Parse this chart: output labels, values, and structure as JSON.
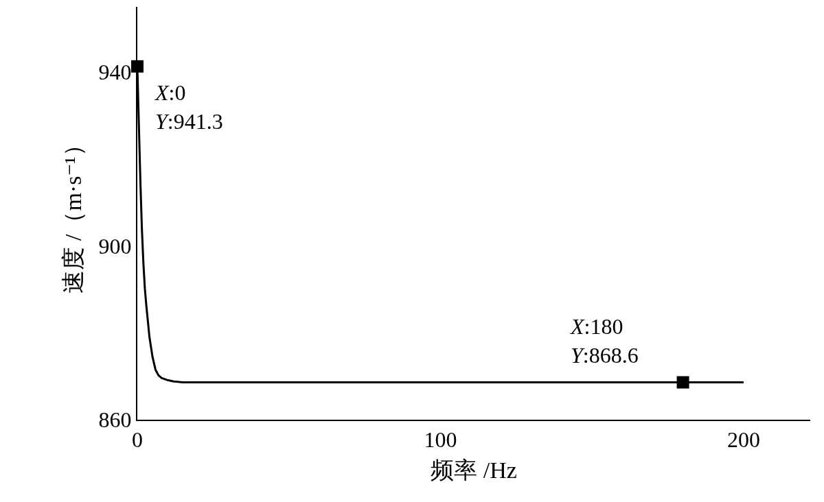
{
  "chart_data": {
    "type": "line",
    "xlabel": "频率 /Hz",
    "ylabel": "速度 /（m·s⁻¹）",
    "xlim": [
      0,
      222
    ],
    "xticks": [
      0,
      100,
      200
    ],
    "ylim": [
      860,
      955
    ],
    "yticks": [
      860,
      900,
      940
    ],
    "series": [
      {
        "color": "#000000",
        "marker": "none",
        "x": [
          0,
          0.5,
          1,
          1.5,
          2,
          2.5,
          3,
          4,
          5,
          6,
          7,
          8,
          10,
          12,
          15,
          20,
          50,
          100,
          150,
          200
        ],
        "values": [
          941.3,
          928,
          915,
          904,
          896,
          890,
          886,
          879,
          874.5,
          871.5,
          870.2,
          869.6,
          869.1,
          868.8,
          868.6,
          868.6,
          868.6,
          868.6,
          868.6,
          868.6
        ]
      },
      {
        "type": "scatter",
        "color": "#000000",
        "marker": "square",
        "x": [
          0,
          180
        ],
        "values": [
          941.3,
          868.6
        ]
      }
    ],
    "annotations": [
      {
        "text": "X:0\nY:941.3",
        "x": 0,
        "y": 941.3
      },
      {
        "text": "X:180\nY:868.6",
        "x": 180,
        "y": 868.6
      }
    ]
  }
}
